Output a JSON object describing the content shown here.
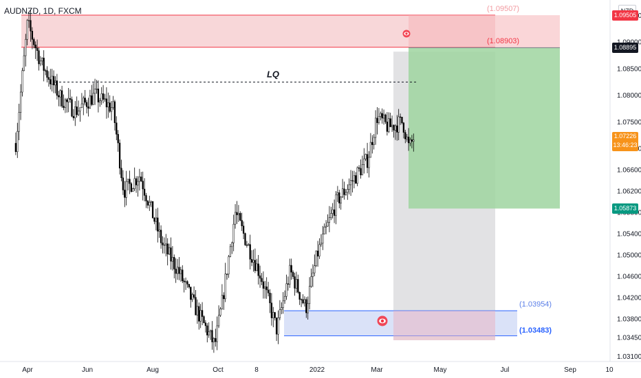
{
  "header": {
    "symbol": "AUDNZD, 1D, FXCM",
    "currency": "NZD"
  },
  "colors": {
    "up": "#ffffff",
    "down": "#000000",
    "wick": "#000000",
    "supply_fill": "#f6c9cc",
    "supply_line": "#f23645",
    "demand_fill": "#cdd8f6",
    "demand_line": "#2962ff",
    "target_fill": "#9fd5a0",
    "stop_fill": "#f6b5b8",
    "grey_fill": "#d3d3d6",
    "current_price": "#f7931a",
    "target_badge": "#089981",
    "stop_badge": "#f23645",
    "entry_badge": "#131722"
  },
  "chart_data": {
    "type": "candlestick",
    "title": "AUDNZD, 1D, FXCM",
    "x_ticks": [
      "Apr",
      "Jun",
      "Aug",
      "Oct",
      "8",
      "2022",
      "Mar",
      "May",
      "Jul",
      "Sep",
      "10"
    ],
    "y_ticks": [
      "1.09500",
      "1.09000",
      "1.08500",
      "1.08000",
      "1.07500",
      "1.07000",
      "1.06600",
      "1.06200",
      "1.05800",
      "1.05400",
      "1.05000",
      "1.04600",
      "1.04200",
      "1.03800",
      "1.03450",
      "1.03100"
    ],
    "ylim": [
      1.03,
      1.097
    ],
    "price_path": [
      {
        "date": "2021-03-20",
        "price": 1.071
      },
      {
        "date": "2021-04-01",
        "price": 1.0935
      },
      {
        "date": "2021-04-15",
        "price": 1.086
      },
      {
        "date": "2021-05-05",
        "price": 1.0795
      },
      {
        "date": "2021-05-20",
        "price": 1.077
      },
      {
        "date": "2021-06-08",
        "price": 1.08
      },
      {
        "date": "2021-06-25",
        "price": 1.0775
      },
      {
        "date": "2021-07-05",
        "price": 1.062
      },
      {
        "date": "2021-07-20",
        "price": 1.065
      },
      {
        "date": "2021-08-10",
        "price": 1.052
      },
      {
        "date": "2021-08-25",
        "price": 1.047
      },
      {
        "date": "2021-09-10",
        "price": 1.04
      },
      {
        "date": "2021-09-28",
        "price": 1.033
      },
      {
        "date": "2021-10-05",
        "price": 1.041
      },
      {
        "date": "2021-10-18",
        "price": 1.058
      },
      {
        "date": "2021-10-30",
        "price": 1.052
      },
      {
        "date": "2021-11-12",
        "price": 1.046
      },
      {
        "date": "2021-11-26",
        "price": 1.036
      },
      {
        "date": "2021-12-08",
        "price": 1.047
      },
      {
        "date": "2021-12-22",
        "price": 1.04
      },
      {
        "date": "2022-01-01",
        "price": 1.05
      },
      {
        "date": "2022-01-20",
        "price": 1.06
      },
      {
        "date": "2022-02-01",
        "price": 1.063
      },
      {
        "date": "2022-02-20",
        "price": 1.068
      },
      {
        "date": "2022-03-01",
        "price": 1.076
      },
      {
        "date": "2022-03-12",
        "price": 1.074
      },
      {
        "date": "2022-03-26",
        "price": 1.075
      },
      {
        "date": "2022-04-01",
        "price": 1.07
      },
      {
        "date": "2022-04-06",
        "price": 1.0722
      }
    ],
    "zones": [
      {
        "label": "supply",
        "price_top": 1.09507,
        "price_bottom": 1.08903,
        "top_label": "(1.09507)",
        "bottom_label": "(1.08903)"
      },
      {
        "label": "demand",
        "price_top": 1.03954,
        "price_bottom": 1.03483,
        "top_label": "(1.03954)",
        "bottom_label": "(1.03483)"
      }
    ],
    "lq_level": {
      "price": 1.0825,
      "label": "LQ"
    },
    "position": {
      "entry": 1.08895,
      "stop": 1.09505,
      "target": 1.05873
    },
    "price_badges": [
      {
        "text": "1.09505",
        "kind": "stop"
      },
      {
        "text": "1.08895",
        "kind": "entry"
      },
      {
        "text": "1.07226",
        "sub": "13:46:23",
        "kind": "current"
      },
      {
        "text": "1.05873",
        "kind": "target"
      }
    ]
  }
}
